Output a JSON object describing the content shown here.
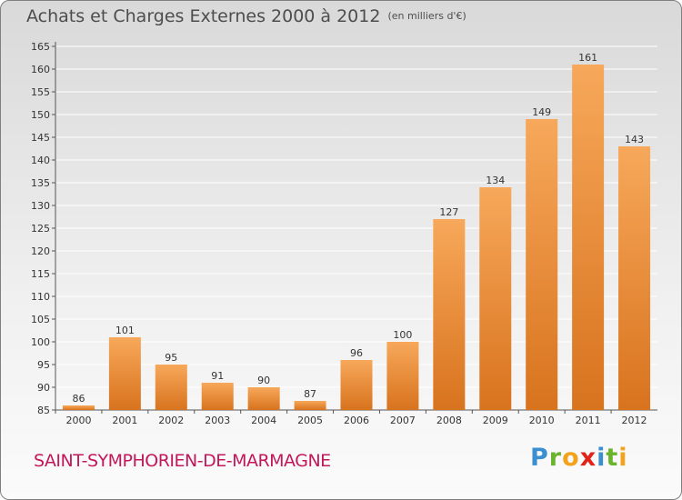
{
  "title": "Achats et Charges Externes 2000 à 2012",
  "unit": "(en milliers d'€)",
  "city": "SAINT-SYMPHORIEN-DE-MARMAGNE",
  "logo": {
    "letters": [
      {
        "ch": "P",
        "color": "#3a8fd0"
      },
      {
        "ch": "r",
        "color": "#6ab42d"
      },
      {
        "ch": "o",
        "color": "#f3a21c"
      },
      {
        "ch": "x",
        "color": "#e2231a"
      },
      {
        "ch": "i",
        "color": "#3a8fd0"
      },
      {
        "ch": "t",
        "color": "#6ab42d"
      },
      {
        "ch": "i",
        "color": "#f3a21c"
      }
    ]
  },
  "colors": {
    "bar_light": "#f7a85a",
    "bar_dark": "#d8731e",
    "axis": "#555555",
    "grid": "#ffffff"
  },
  "chart_data": {
    "type": "bar",
    "categories": [
      "2000",
      "2001",
      "2002",
      "2003",
      "2004",
      "2005",
      "2006",
      "2007",
      "2008",
      "2009",
      "2010",
      "2011",
      "2012"
    ],
    "values": [
      86,
      101,
      95,
      91,
      90,
      87,
      96,
      100,
      127,
      134,
      149,
      161,
      143
    ],
    "ylim": [
      85,
      165
    ],
    "yticks": [
      85,
      90,
      95,
      100,
      105,
      110,
      115,
      120,
      125,
      130,
      135,
      140,
      145,
      150,
      155,
      160,
      165
    ],
    "grid": true,
    "legend": "none"
  }
}
